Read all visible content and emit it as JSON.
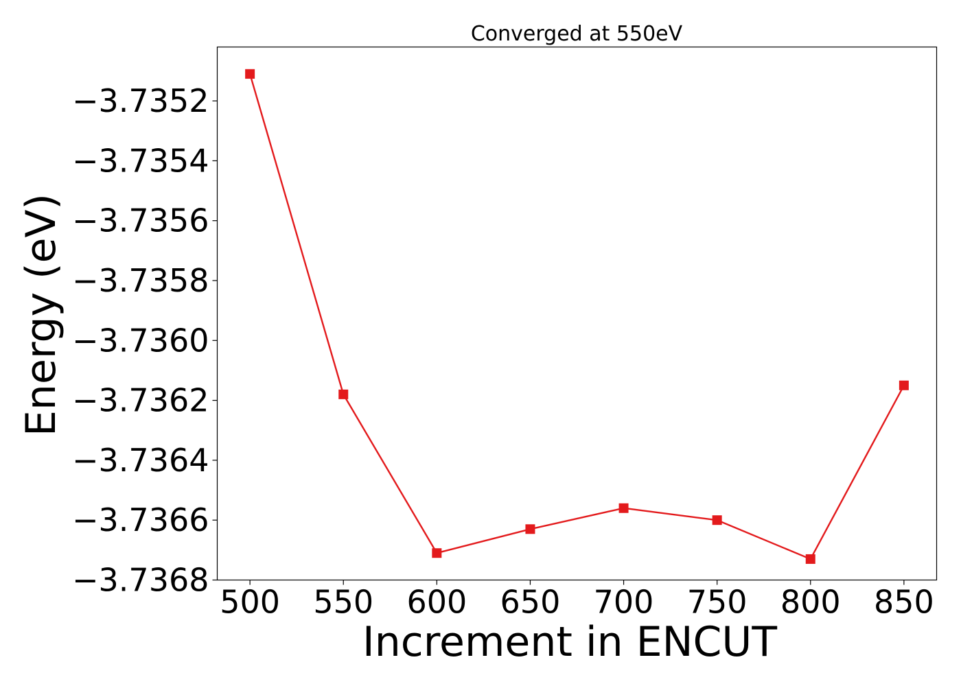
{
  "chart_data": {
    "type": "line",
    "title": "Converged at 550eV",
    "xlabel": "Increment in ENCUT",
    "ylabel": "Energy (eV)",
    "x": [
      500,
      550,
      600,
      650,
      700,
      750,
      800,
      850
    ],
    "series": [
      {
        "values": [
          -3.73511,
          -3.73618,
          -3.73671,
          -3.73663,
          -3.73656,
          -3.7366,
          -3.73673,
          -3.73615
        ],
        "color": "#e31a1c",
        "marker": "square"
      }
    ],
    "x_ticks": [
      500,
      550,
      600,
      650,
      700,
      750,
      800,
      850
    ],
    "x_tick_labels": [
      "500",
      "550",
      "600",
      "650",
      "700",
      "750",
      "800",
      "850"
    ],
    "y_ticks": [
      -3.7352,
      -3.7354,
      -3.7356,
      -3.7358,
      -3.736,
      -3.7362,
      -3.7364,
      -3.7366,
      -3.7368
    ],
    "y_tick_labels": [
      "−3.7352",
      "−3.7354",
      "−3.7356",
      "−3.7358",
      "−3.7360",
      "−3.7362",
      "−3.7364",
      "−3.7366",
      "−3.7368"
    ],
    "xlim": [
      482.5,
      867.5
    ],
    "ylim": [
      -3.7368,
      -3.73502
    ],
    "grid": false,
    "legend": "none"
  }
}
